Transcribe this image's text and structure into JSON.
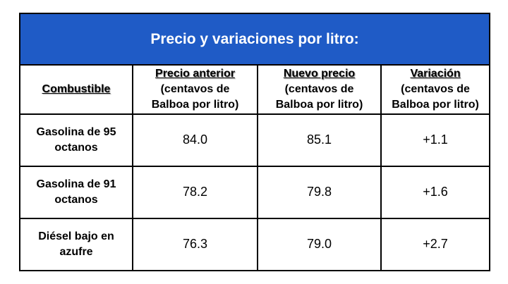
{
  "table": {
    "title": "Precio y variaciones por litro:",
    "header": {
      "first": "Combustible",
      "columns": [
        {
          "name": "Precio anterior",
          "unit": "(centavos de Balboa por litro)"
        },
        {
          "name": "Nuevo precio",
          "unit": "(centavos de Balboa por litro)"
        },
        {
          "name": "Variación",
          "unit": "(centavos de Balboa por litro)"
        }
      ]
    },
    "rows": [
      [
        "Gasolina de 95 octanos",
        "84.0",
        "85.1",
        "+1.1"
      ],
      [
        "Gasolina de 91 octanos",
        "78.2",
        "79.8",
        "+1.6"
      ],
      [
        "Diésel bajo en azufre",
        "76.3",
        "79.0",
        "+2.7"
      ]
    ]
  }
}
